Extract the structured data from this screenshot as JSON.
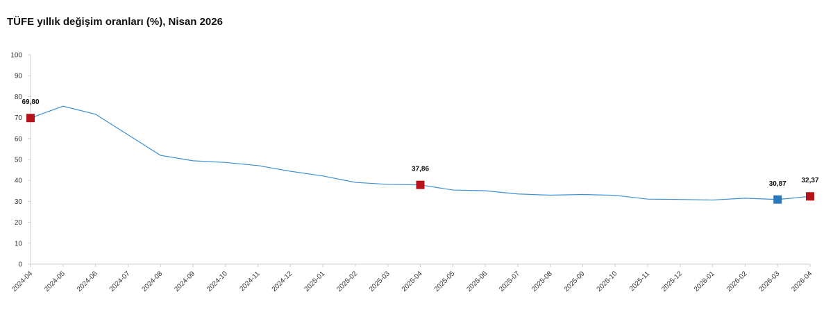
{
  "chart_data": {
    "type": "line",
    "title": "TÜFE yıllık değişim oranları (%), Nisan 2026",
    "categories": [
      "2024-04",
      "2024-05",
      "2024-06",
      "2024-07",
      "2024-08",
      "2024-09",
      "2024-10",
      "2024-11",
      "2024-12",
      "2025-01",
      "2025-02",
      "2025-03",
      "2025-04",
      "2025-05",
      "2025-06",
      "2025-07",
      "2025-08",
      "2025-09",
      "2025-10",
      "2025-11",
      "2025-12",
      "2026-01",
      "2026-02",
      "2026-03",
      "2026-04"
    ],
    "values": [
      69.8,
      75.45,
      71.6,
      61.78,
      51.97,
      49.38,
      48.58,
      47.09,
      44.38,
      42.12,
      39.05,
      38.1,
      37.86,
      35.41,
      35.05,
      33.52,
      32.95,
      33.29,
      32.87,
      31.07,
      30.89,
      30.65,
      31.5,
      30.87,
      32.37
    ],
    "value_labels": [
      "69,80",
      null,
      null,
      null,
      null,
      null,
      null,
      null,
      null,
      null,
      null,
      null,
      "37,86",
      null,
      null,
      null,
      null,
      null,
      null,
      null,
      null,
      null,
      null,
      "30,87",
      "32,37"
    ],
    "marker_colors": [
      "#b5121b",
      null,
      null,
      null,
      null,
      null,
      null,
      null,
      null,
      null,
      null,
      null,
      "#b5121b",
      null,
      null,
      null,
      null,
      null,
      null,
      null,
      null,
      null,
      null,
      "#2a78bd",
      "#b5121b"
    ],
    "color": "#3d8fd1",
    "ylim": [
      0,
      100
    ],
    "yticks": [
      0,
      10,
      20,
      30,
      40,
      50,
      60,
      70,
      80,
      90,
      100
    ],
    "grid": false
  }
}
